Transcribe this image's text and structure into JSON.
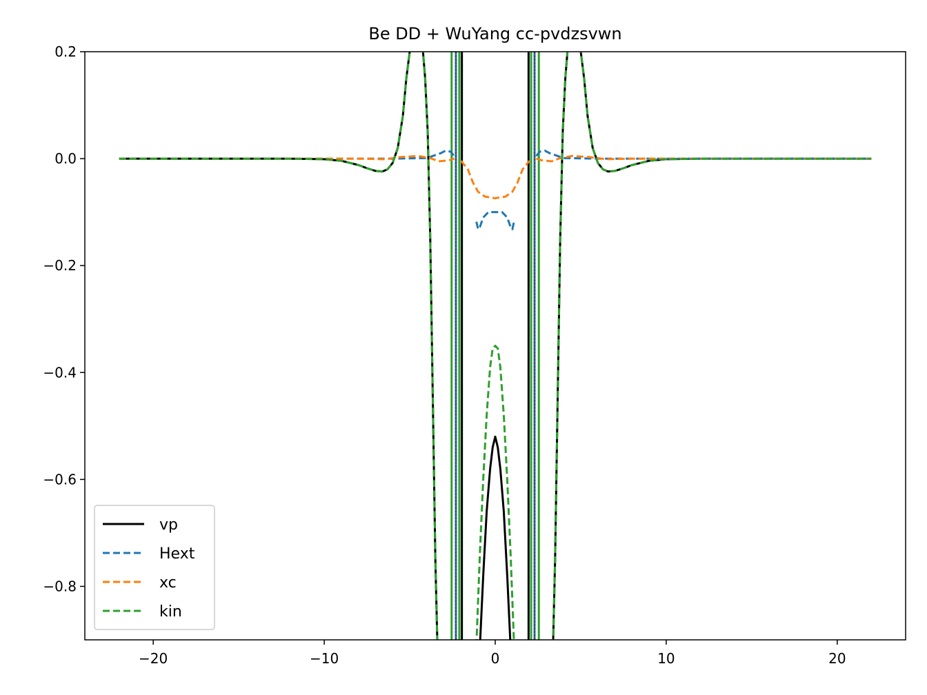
{
  "chart_data": {
    "type": "line",
    "title": "Be DD + WuYang cc-pvdzsvwn",
    "xlabel": "",
    "ylabel": "",
    "xlim": [
      -24,
      24
    ],
    "ylim": [
      -0.9,
      0.2
    ],
    "grid": false,
    "legend_placement": "lower-left",
    "x_ticks": [
      -20,
      -10,
      0,
      10,
      20
    ],
    "x_tick_labels": [
      "−20",
      "−10",
      "0",
      "10",
      "20"
    ],
    "y_ticks": [
      -0.8,
      -0.6,
      -0.4,
      -0.2,
      0.0,
      0.2
    ],
    "y_tick_labels": [
      "−0.8",
      "−0.6",
      "−0.4",
      "−0.2",
      "0.0",
      "0.2"
    ],
    "atom_markers_x": [
      -2.3,
      2.3
    ],
    "atom_marker_color": "#8b0000",
    "series": [
      {
        "name": "vp",
        "color": "#000000",
        "dash": "solid",
        "x": [
          -22,
          -12,
          -10,
          -9,
          -8,
          -7.5,
          -7,
          -6.6,
          -6.3,
          -6.0,
          -5.7,
          -5.4,
          -5.2,
          -5.0,
          -4.9
        ],
        "y": [
          0,
          0,
          -0.001,
          -0.004,
          -0.012,
          -0.018,
          -0.023,
          -0.024,
          -0.02,
          -0.008,
          0.02,
          0.08,
          0.15,
          0.2,
          0.23
        ],
        "x2": [
          -4.3,
          -4.1,
          -3.95,
          -3.8,
          -3.65,
          -3.5,
          -3.35
        ],
        "y2": [
          0.23,
          0.15,
          0.05,
          -0.15,
          -0.45,
          -0.75,
          -0.95
        ],
        "x3": [
          -0.95,
          -0.7,
          -0.5,
          -0.3,
          -0.15,
          0,
          0.15,
          0.3,
          0.5,
          0.7,
          0.95
        ],
        "y3": [
          -0.95,
          -0.78,
          -0.66,
          -0.58,
          -0.54,
          -0.52,
          -0.54,
          -0.58,
          -0.66,
          -0.78,
          -0.95
        ]
      },
      {
        "name": "Hext",
        "color": "#1f77b4",
        "dash": "dashed",
        "x": [
          -22,
          -10,
          -6,
          -4,
          -3.2,
          -2.9,
          -2.6,
          -2.4
        ],
        "y": [
          0,
          0,
          0,
          0.001,
          0.01,
          0.015,
          0.013,
          0.005
        ],
        "x2": [
          -1.1,
          -1.0,
          -0.9,
          -0.7,
          -0.4,
          0,
          0.4,
          0.7,
          0.9,
          1.0,
          1.1
        ],
        "y2": [
          -0.118,
          -0.132,
          -0.128,
          -0.11,
          -0.1,
          -0.1,
          -0.1,
          -0.11,
          -0.128,
          -0.132,
          -0.118
        ],
        "x3": [
          2.4,
          2.6,
          2.9,
          3.2,
          4,
          6,
          10,
          22
        ],
        "y3": [
          0.005,
          0.013,
          0.015,
          0.01,
          0.001,
          0,
          0,
          0
        ]
      },
      {
        "name": "xc",
        "color": "#ff7f0e",
        "dash": "dashed",
        "x": [
          -22,
          -8,
          -6.5,
          -5.5,
          -4.5,
          -3.8,
          -3.3,
          -2.7,
          -2.4
        ],
        "y": [
          0,
          0,
          -0.001,
          0.003,
          0.005,
          0.001,
          -0.005,
          -0.003,
          0
        ],
        "x2": [
          -2.0,
          -1.6,
          -1.3,
          -1.0,
          -0.6,
          0,
          0.6,
          1.0,
          1.3,
          1.6,
          2.0
        ],
        "y2": [
          -0.004,
          -0.02,
          -0.045,
          -0.062,
          -0.071,
          -0.074,
          -0.071,
          -0.062,
          -0.045,
          -0.02,
          -0.004
        ],
        "x3": [
          2.4,
          2.7,
          3.3,
          3.8,
          4.5,
          5.5,
          6.5,
          8,
          22
        ],
        "y3": [
          0,
          -0.003,
          -0.005,
          0.001,
          0.005,
          0.003,
          -0.001,
          0,
          0
        ]
      },
      {
        "name": "kin",
        "color": "#2ca02c",
        "dash": "dashed",
        "x": [
          -22,
          -12,
          -10,
          -9,
          -8,
          -7.5,
          -7,
          -6.6,
          -6.3,
          -6.0,
          -5.7,
          -5.4,
          -5.2,
          -5.0,
          -4.9
        ],
        "y": [
          0,
          0,
          -0.001,
          -0.004,
          -0.012,
          -0.018,
          -0.023,
          -0.024,
          -0.02,
          -0.008,
          0.02,
          0.08,
          0.15,
          0.2,
          0.23
        ],
        "x2": [
          -4.3,
          -4.1,
          -3.95,
          -3.8,
          -3.65,
          -3.5,
          -3.35
        ],
        "y2": [
          0.23,
          0.15,
          0.05,
          -0.15,
          -0.45,
          -0.75,
          -0.95
        ],
        "x3": [
          -1.15,
          -0.9,
          -0.7,
          -0.5,
          -0.3,
          -0.15,
          0,
          0.15,
          0.3,
          0.5,
          0.7,
          0.9,
          1.15
        ],
        "y3": [
          -0.95,
          -0.74,
          -0.6,
          -0.48,
          -0.39,
          -0.355,
          -0.35,
          -0.355,
          -0.39,
          -0.48,
          -0.6,
          -0.74,
          -0.95
        ]
      }
    ],
    "spikes": [
      {
        "x": -2.55,
        "color": "#2ca02c"
      },
      {
        "x": -2.3,
        "color": "#1f77b4"
      },
      {
        "x": -2.1,
        "color": "#2ca02c"
      },
      {
        "x": -1.95,
        "color": "#000000"
      },
      {
        "x": 1.95,
        "color": "#000000"
      },
      {
        "x": 2.1,
        "color": "#2ca02c"
      },
      {
        "x": 2.3,
        "color": "#1f77b4"
      },
      {
        "x": 2.55,
        "color": "#2ca02c"
      }
    ]
  }
}
